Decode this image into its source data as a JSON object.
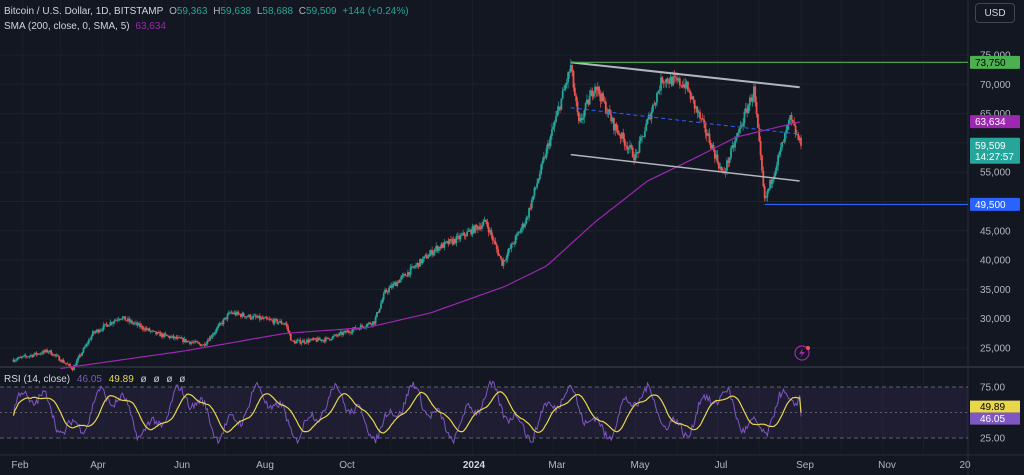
{
  "legend": {
    "symbol": "Bitcoin / U.S. Dollar, 1D, BITSTAMP",
    "o_label": "O",
    "o_value": "59,363",
    "h_label": "H",
    "h_value": "59,638",
    "l_label": "L",
    "l_value": "58,688",
    "c_label": "C",
    "c_value": "59,509",
    "change": "+144 (+0.24%)",
    "sma_label": "SMA (200, close, 0, SMA, 5)",
    "sma_value": "63,634"
  },
  "currency_button": "USD",
  "colors": {
    "background": "#131722",
    "up": "#26a69a",
    "down": "#ef5350",
    "sma": "#9c27b0",
    "rsi_line": "#7e57c2",
    "rsi_ma": "#e8d64b",
    "resistance_line": "#4caf50",
    "support_line": "#2962ff",
    "channel": "#b2b5be"
  },
  "price_axis_ticks": [
    "75,000",
    "70,000",
    "65,000",
    "60,000",
    "55,000",
    "50,000",
    "45,000",
    "40,000",
    "35,000",
    "30,000",
    "25,000"
  ],
  "price_tags": {
    "resistance": "73,750",
    "sma": "63,634",
    "close": "59,509",
    "countdown": "14:27:57",
    "support": "49,500"
  },
  "rsi": {
    "label": "RSI (14, close)",
    "value": "46.05",
    "ma_value": "49.89",
    "extras": [
      "ø",
      "ø",
      "ø",
      "ø"
    ],
    "axis_ticks": [
      "75.00",
      "50.00",
      "25.00"
    ],
    "tags": {
      "ma": "49.89",
      "rsi": "46.05"
    }
  },
  "time_axis": [
    "Feb",
    "Apr",
    "Jun",
    "Aug",
    "Oct",
    "2024",
    "Mar",
    "May",
    "Jul",
    "Sep",
    "Nov",
    "20"
  ],
  "chart_data": {
    "type": "candlestick",
    "title": "Bitcoin / U.S. Dollar, 1D, BITSTAMP",
    "ylim": [
      22000,
      77000
    ],
    "price_anchors": [
      {
        "x": "2023-01-25",
        "price": 23000
      },
      {
        "x": "2023-02-20",
        "price": 24500
      },
      {
        "x": "2023-03-10",
        "price": 21500
      },
      {
        "x": "2023-03-25",
        "price": 27500
      },
      {
        "x": "2023-04-14",
        "price": 30300
      },
      {
        "x": "2023-05-10",
        "price": 27500
      },
      {
        "x": "2023-06-15",
        "price": 25500
      },
      {
        "x": "2023-07-05",
        "price": 31000
      },
      {
        "x": "2023-08-15",
        "price": 29200
      },
      {
        "x": "2023-08-20",
        "price": 26000
      },
      {
        "x": "2023-09-15",
        "price": 26500
      },
      {
        "x": "2023-10-20",
        "price": 29500
      },
      {
        "x": "2023-10-28",
        "price": 34500
      },
      {
        "x": "2023-12-05",
        "price": 42000
      },
      {
        "x": "2023-12-20",
        "price": 43500
      },
      {
        "x": "2024-01-11",
        "price": 46500
      },
      {
        "x": "2024-01-23",
        "price": 39500
      },
      {
        "x": "2024-02-10",
        "price": 47000
      },
      {
        "x": "2024-02-28",
        "price": 61000
      },
      {
        "x": "2024-03-14",
        "price": 73000
      },
      {
        "x": "2024-03-20",
        "price": 63000
      },
      {
        "x": "2024-04-01",
        "price": 70000
      },
      {
        "x": "2024-04-15",
        "price": 63000
      },
      {
        "x": "2024-05-01",
        "price": 57500
      },
      {
        "x": "2024-05-21",
        "price": 71000
      },
      {
        "x": "2024-06-07",
        "price": 70000
      },
      {
        "x": "2024-06-25",
        "price": 60500
      },
      {
        "x": "2024-07-05",
        "price": 54500
      },
      {
        "x": "2024-07-28",
        "price": 69000
      },
      {
        "x": "2024-08-05",
        "price": 50000
      },
      {
        "x": "2024-08-24",
        "price": 64000
      },
      {
        "x": "2024-09-01",
        "price": 59509
      }
    ],
    "sma_anchors": [
      {
        "x": "2023-03-01",
        "price": 21500
      },
      {
        "x": "2023-06-01",
        "price": 24500
      },
      {
        "x": "2023-08-15",
        "price": 27500
      },
      {
        "x": "2023-10-15",
        "price": 28500
      },
      {
        "x": "2023-12-01",
        "price": 31000
      },
      {
        "x": "2024-01-25",
        "price": 35500
      },
      {
        "x": "2024-02-25",
        "price": 39000
      },
      {
        "x": "2024-04-01",
        "price": 46500
      },
      {
        "x": "2024-05-10",
        "price": 53500
      },
      {
        "x": "2024-06-15",
        "price": 57500
      },
      {
        "x": "2024-07-15",
        "price": 61000
      },
      {
        "x": "2024-09-01",
        "price": 63634
      }
    ],
    "channel_upper": [
      {
        "x": "2024-03-14",
        "price": 73750
      },
      {
        "x": "2024-08-31",
        "price": 69500
      }
    ],
    "channel_lower": [
      {
        "x": "2024-03-14",
        "price": 58000
      },
      {
        "x": "2024-08-31",
        "price": 53500
      }
    ],
    "channel_mid": [
      {
        "x": "2024-03-14",
        "price": 66000
      },
      {
        "x": "2024-08-31",
        "price": 61500
      }
    ],
    "resistance": {
      "price": 73750,
      "from": "2024-03-14"
    },
    "support": {
      "price": 49500,
      "from": "2024-08-05"
    },
    "rsi_ylim": [
      15,
      100
    ],
    "rsi_levels": [
      75,
      50,
      25
    ],
    "rsi_current": 46.05,
    "rsi_ma_current": 49.89
  }
}
